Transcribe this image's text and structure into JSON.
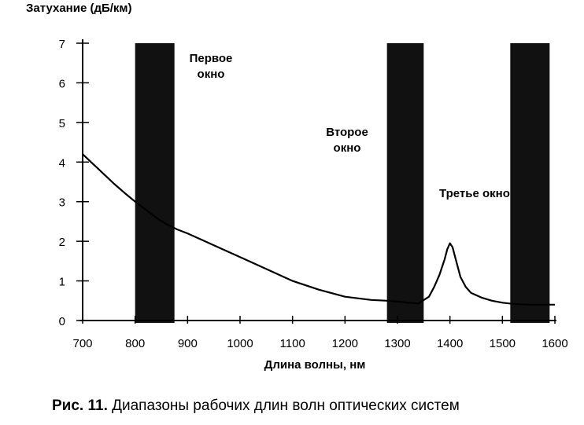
{
  "chart_data": {
    "type": "line",
    "title": "",
    "ylabel": "Затухание (дБ/км)",
    "xlabel": "Длина волны, нм",
    "xlim": [
      700,
      1600
    ],
    "ylim": [
      0,
      7
    ],
    "x_ticks": [
      700,
      800,
      900,
      1000,
      1100,
      1200,
      1300,
      1400,
      1500,
      1600
    ],
    "y_ticks": [
      0,
      1,
      2,
      3,
      4,
      5,
      6,
      7
    ],
    "grid": false,
    "series": [
      {
        "x": [
          700,
          720,
          740,
          760,
          780,
          800,
          820,
          840,
          860,
          880,
          900,
          950,
          1000,
          1050,
          1100,
          1150,
          1200,
          1250,
          1280,
          1300,
          1320,
          1340,
          1360,
          1370,
          1380,
          1390,
          1395,
          1400,
          1405,
          1410,
          1420,
          1430,
          1440,
          1460,
          1480,
          1500,
          1520,
          1550,
          1580,
          1600
        ],
        "y": [
          4.2,
          3.95,
          3.7,
          3.45,
          3.22,
          3.0,
          2.8,
          2.6,
          2.43,
          2.3,
          2.2,
          1.9,
          1.6,
          1.3,
          1.0,
          0.78,
          0.6,
          0.52,
          0.5,
          0.48,
          0.45,
          0.43,
          0.6,
          0.85,
          1.15,
          1.55,
          1.8,
          1.95,
          1.85,
          1.6,
          1.1,
          0.85,
          0.7,
          0.58,
          0.5,
          0.45,
          0.42,
          0.4,
          0.4,
          0.4
        ]
      }
    ],
    "bands": [
      {
        "label": "Первое окно",
        "line1": "Первое",
        "line2": "окно",
        "x_range": [
          800,
          875
        ]
      },
      {
        "label": "Второе окно",
        "line1": "Второе",
        "line2": "окно",
        "x_range": [
          1280,
          1350
        ]
      },
      {
        "label": "Третье окно",
        "line1": "Третье окно",
        "x_range": [
          1515,
          1590
        ]
      }
    ],
    "band_color": "#111111",
    "line_color": "#000000"
  },
  "caption": {
    "prefix": "Рис. 11.",
    "text": "Диапазоны рабочих длин волн оптических систем"
  }
}
